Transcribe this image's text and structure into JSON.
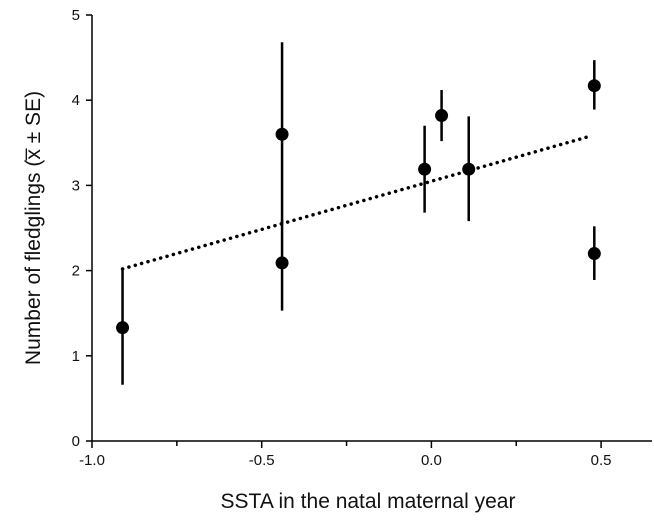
{
  "chart_data": {
    "type": "scatter",
    "title": "",
    "xlabel": "SSTA in the natal maternal year",
    "ylabel": "Number of fledglings (x̅ ± SE)",
    "xlim": [
      -1.0,
      0.65
    ],
    "ylim": [
      0,
      5
    ],
    "x_ticks": [
      -1.0,
      -0.5,
      0.0,
      0.5
    ],
    "x_tick_labels": [
      "-1.0",
      "-0.5",
      "0.0",
      "0.5"
    ],
    "x_minor_ticks": [
      -0.75,
      -0.25,
      0.25
    ],
    "y_ticks": [
      0,
      1,
      2,
      3,
      4,
      5
    ],
    "y_tick_labels": [
      "0",
      "1",
      "2",
      "3",
      "4",
      "5"
    ],
    "grid": false,
    "points": [
      {
        "x": -0.91,
        "y": 1.33,
        "err_low": 0.66,
        "err_high": 2.02
      },
      {
        "x": -0.44,
        "y": 3.6,
        "err_low": 2.54,
        "err_high": 4.68
      },
      {
        "x": -0.44,
        "y": 2.09,
        "err_low": 1.53,
        "err_high": 2.6
      },
      {
        "x": -0.02,
        "y": 3.19,
        "err_low": 2.68,
        "err_high": 3.7
      },
      {
        "x": 0.03,
        "y": 3.82,
        "err_low": 3.52,
        "err_high": 4.12
      },
      {
        "x": 0.11,
        "y": 3.19,
        "err_low": 2.58,
        "err_high": 3.81
      },
      {
        "x": 0.48,
        "y": 4.17,
        "err_low": 3.89,
        "err_high": 4.47
      },
      {
        "x": 0.48,
        "y": 2.2,
        "err_low": 1.89,
        "err_high": 2.52
      }
    ],
    "trend_line": {
      "style": "dotted",
      "x": [
        -0.91,
        0.47
      ],
      "y": [
        2.02,
        3.58
      ]
    }
  }
}
